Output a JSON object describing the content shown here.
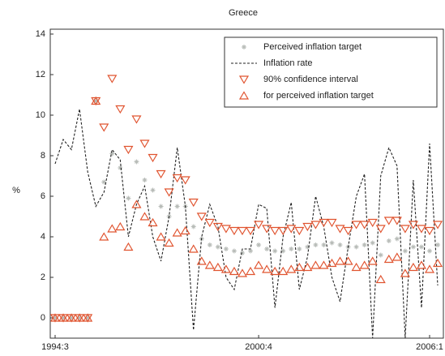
{
  "chart_data": {
    "type": "line",
    "title": "Greece",
    "y_label": "%",
    "categories": [
      "1994:3",
      null,
      null,
      null,
      null,
      null,
      null,
      null,
      null,
      null,
      null,
      null,
      null,
      null,
      null,
      null,
      null,
      null,
      null,
      null,
      null,
      null,
      null,
      null,
      null,
      "2000:4",
      null,
      null,
      null,
      null,
      null,
      null,
      null,
      null,
      null,
      null,
      null,
      null,
      null,
      null,
      null,
      null,
      null,
      null,
      null,
      null,
      "2006:1",
      null
    ],
    "series": [
      {
        "name": "Perceived inflation target",
        "color": "#b8bcb8",
        "marker": "star",
        "line": "none",
        "values": [
          0,
          0,
          0,
          0,
          0,
          10.7,
          6.7,
          8.1,
          7.4,
          5.9,
          7.7,
          6.8,
          6.3,
          5.5,
          5.0,
          5.5,
          5.5,
          4.5,
          3.9,
          3.6,
          3.5,
          3.4,
          3.3,
          3.2,
          3.3,
          3.6,
          3.4,
          3.3,
          3.3,
          3.4,
          3.4,
          3.5,
          3.6,
          3.6,
          3.7,
          3.6,
          3.5,
          3.5,
          3.6,
          3.7,
          3.1,
          3.8,
          3.9,
          3.3,
          3.5,
          3.5,
          3.3,
          3.6
        ]
      },
      {
        "name": "Inflation rate",
        "color": "#222222",
        "marker": "none",
        "line": "dashed",
        "values": [
          7.6,
          8.8,
          8.3,
          10.3,
          7.2,
          5.5,
          6.2,
          8.3,
          7.8,
          4.0,
          5.6,
          6.5,
          4.0,
          2.8,
          5.0,
          8.4,
          5.5,
          -0.6,
          4.0,
          5.6,
          4.5,
          2.0,
          1.4,
          3.4,
          3.4,
          5.6,
          5.4,
          0.5,
          4.0,
          5.7,
          1.4,
          3.0,
          6.0,
          4.5,
          2.0,
          0.8,
          3.5,
          6.0,
          7.1,
          -1.0,
          7.0,
          8.4,
          7.5,
          -1.0,
          6.8,
          0.5,
          8.6,
          1.6
        ]
      },
      {
        "name": "90% confidence interval",
        "color": "#e0532f",
        "marker": "triangle-down",
        "line": "none",
        "values": [
          0,
          0,
          0,
          0,
          0,
          10.7,
          9.4,
          11.8,
          10.3,
          8.3,
          9.8,
          8.6,
          7.9,
          7.1,
          6.2,
          6.9,
          6.8,
          5.7,
          5.0,
          4.7,
          4.5,
          4.4,
          4.3,
          4.3,
          4.3,
          4.6,
          4.4,
          4.3,
          4.3,
          4.4,
          4.3,
          4.5,
          4.6,
          4.7,
          4.7,
          4.4,
          4.3,
          4.6,
          4.6,
          4.7,
          4.4,
          4.8,
          4.8,
          4.4,
          4.6,
          4.4,
          4.3,
          4.6
        ]
      },
      {
        "name": "for perceived inflation target",
        "color": "#e0532f",
        "marker": "triangle-up",
        "line": "none",
        "values": [
          0,
          0,
          0,
          0,
          0,
          10.7,
          4.0,
          4.4,
          4.5,
          3.5,
          5.6,
          5.0,
          4.7,
          4.0,
          3.7,
          4.2,
          4.3,
          3.4,
          2.8,
          2.6,
          2.5,
          2.4,
          2.3,
          2.2,
          2.3,
          2.6,
          2.4,
          2.3,
          2.3,
          2.4,
          2.5,
          2.5,
          2.6,
          2.6,
          2.7,
          2.8,
          2.8,
          2.5,
          2.6,
          2.8,
          1.9,
          2.9,
          3.0,
          2.2,
          2.5,
          2.6,
          2.4,
          2.7
        ]
      }
    ],
    "ylim": [
      -1,
      14
    ],
    "yticks": [
      0,
      2,
      4,
      6,
      8,
      10,
      12,
      14
    ],
    "legend": "upper right",
    "grid": false
  }
}
